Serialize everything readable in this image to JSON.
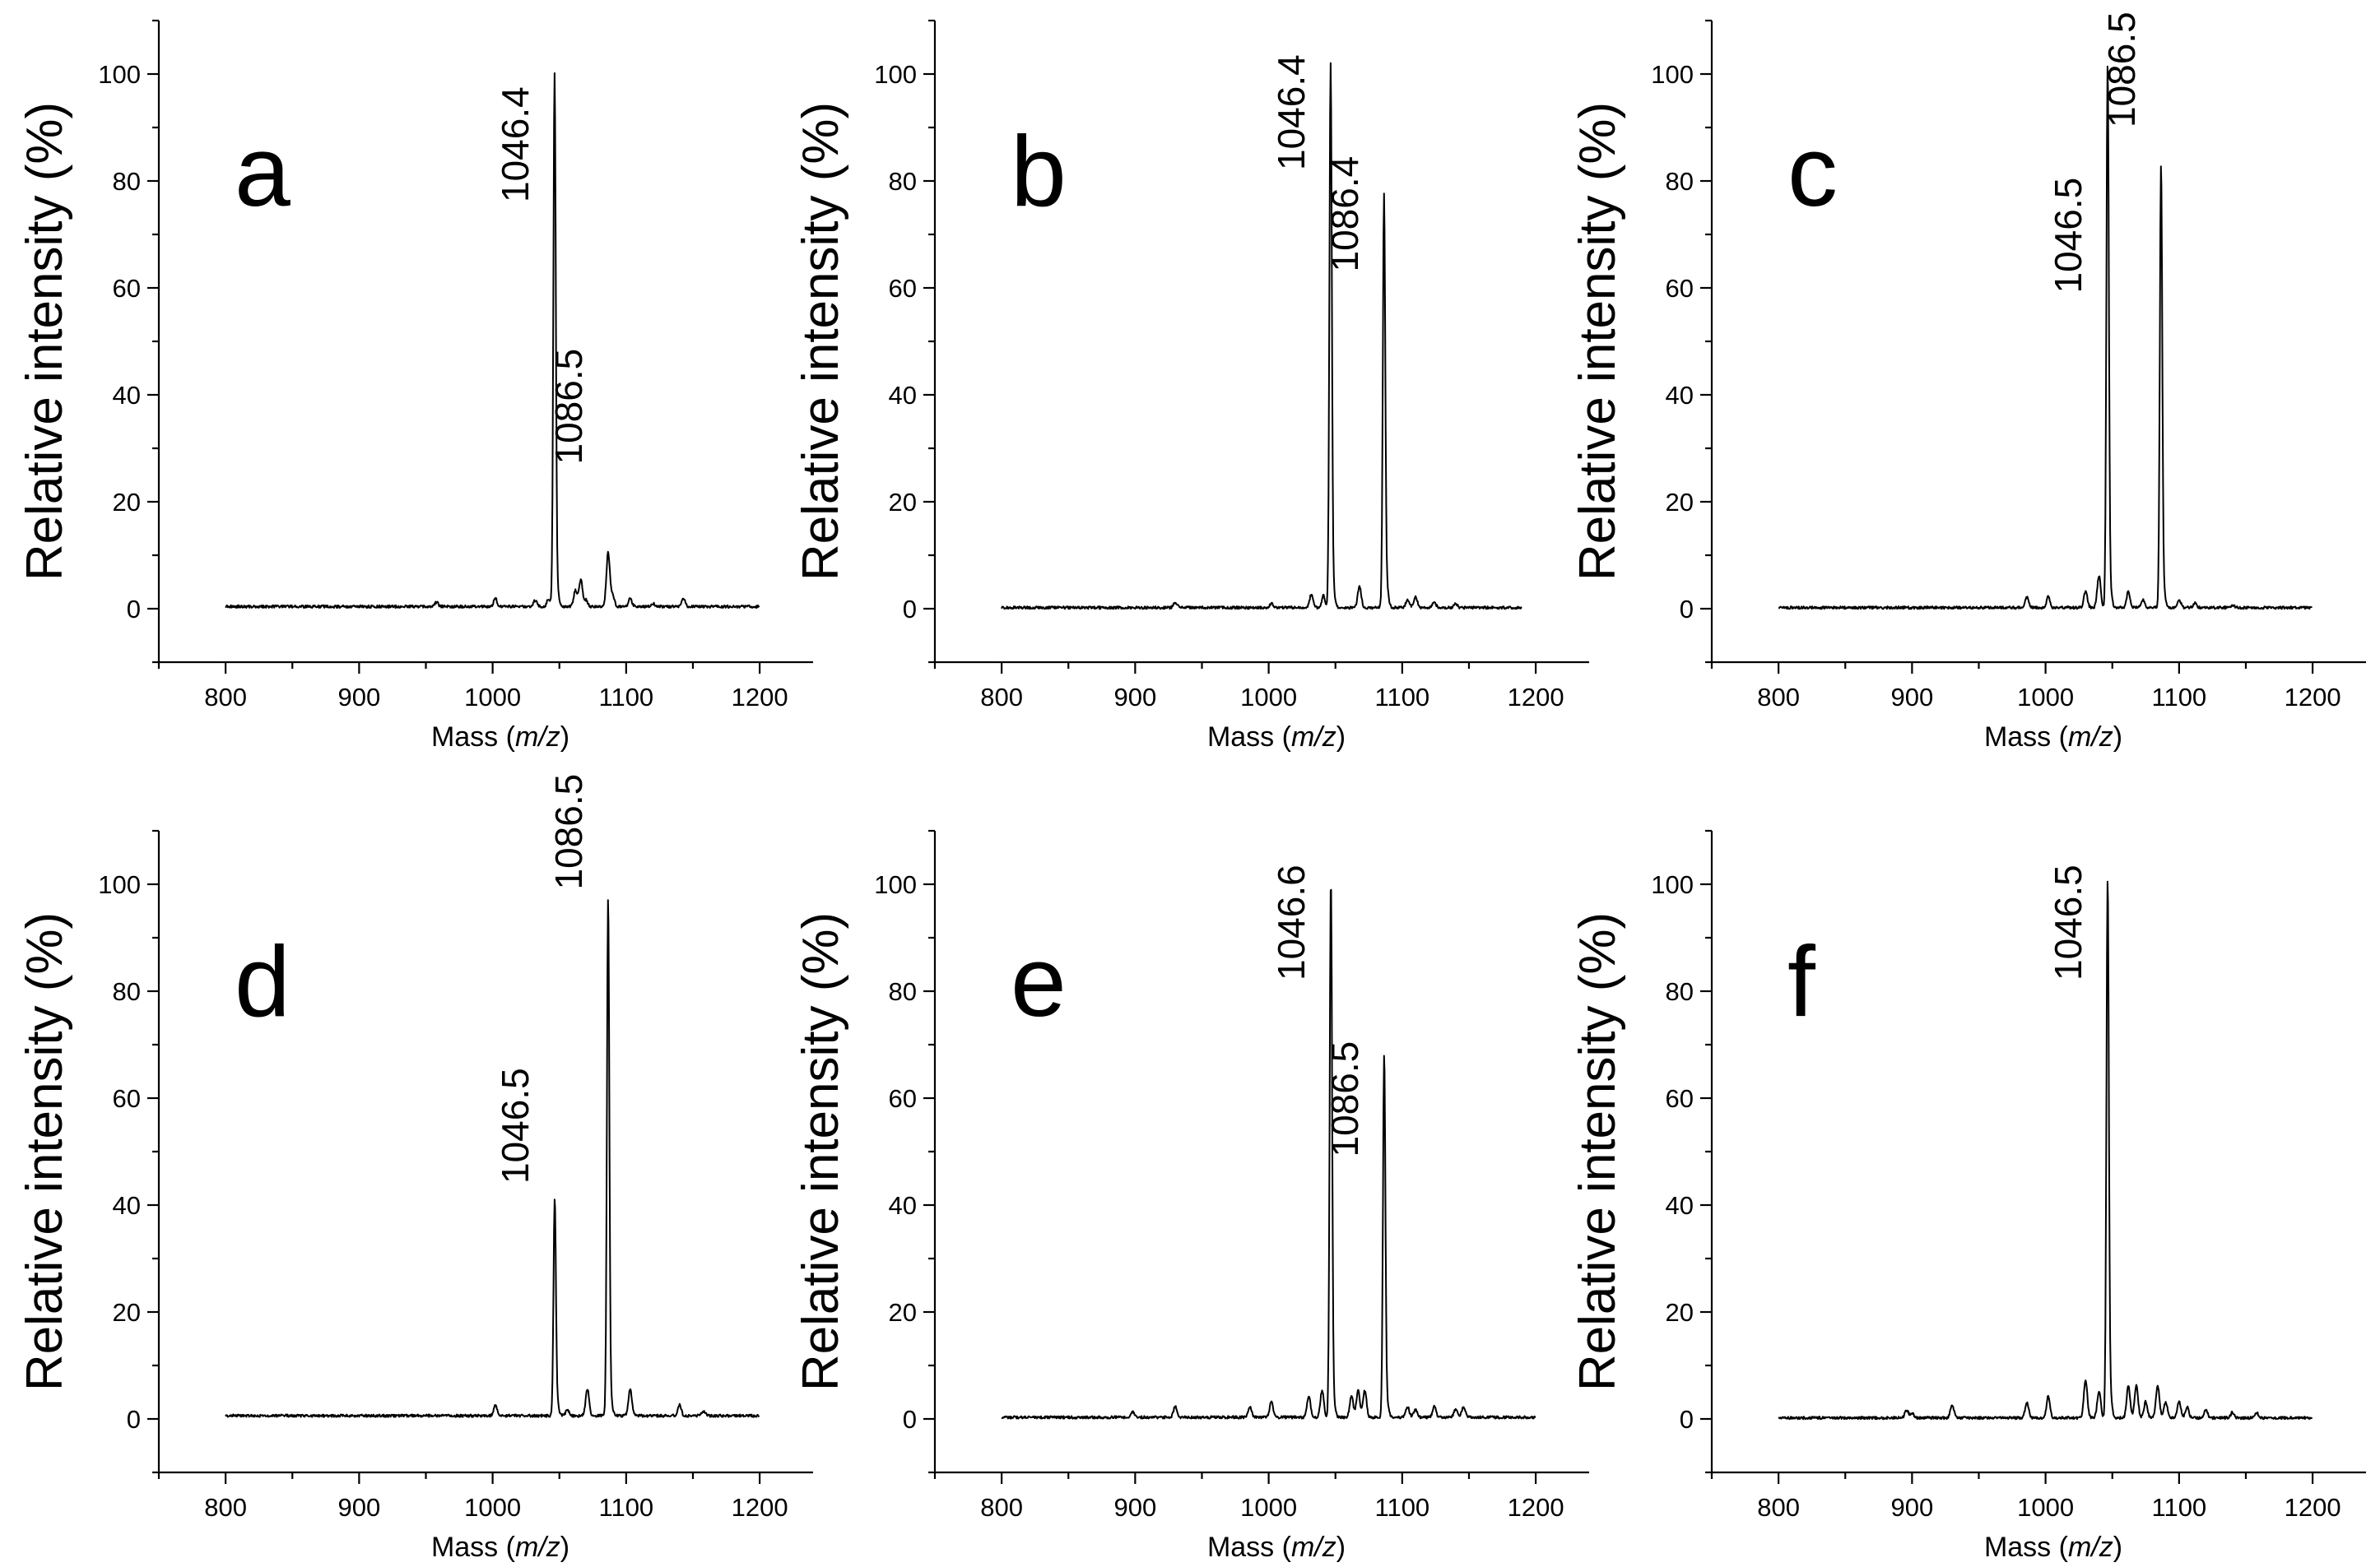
{
  "chart_data": [
    {
      "type": "line",
      "panel_label": "a",
      "xlabel_prefix": "Mass (",
      "xlabel_italic": "m/z",
      "xlabel_suffix": ")",
      "ylabel": "Relative intensity (%)",
      "xlim": [
        750,
        1240
      ],
      "ylim": [
        -10,
        110
      ],
      "xticks": [
        "800",
        "900",
        "1000",
        "1100",
        "1200"
      ],
      "yticks": [
        "0",
        "20",
        "40",
        "60",
        "80",
        "100"
      ],
      "x_range": [
        800,
        1200
      ],
      "baseline": 0.4,
      "peaks": [
        [
          958,
          0.8
        ],
        [
          1002,
          1.5
        ],
        [
          1032,
          1.2
        ],
        [
          1042,
          1.5
        ],
        [
          1046.4,
          99
        ],
        [
          1048.4,
          3
        ],
        [
          1062,
          3
        ],
        [
          1066,
          5
        ],
        [
          1070,
          1.2
        ],
        [
          1086.5,
          10
        ],
        [
          1090,
          2
        ],
        [
          1103,
          1.5
        ],
        [
          1120,
          0.6
        ],
        [
          1143,
          1.5
        ]
      ],
      "annotations": [
        {
          "text": "1046.4",
          "x": 1046.4,
          "y": 76
        },
        {
          "text": "1086.5",
          "x": 1086.5,
          "y": 27
        }
      ]
    },
    {
      "type": "line",
      "panel_label": "b",
      "xlabel_prefix": "Mass (",
      "xlabel_italic": "m/z",
      "xlabel_suffix": ")",
      "ylabel": "Relative intensity (%)",
      "xlim": [
        750,
        1240
      ],
      "ylim": [
        -10,
        110
      ],
      "xticks": [
        "800",
        "900",
        "1000",
        "1100",
        "1200"
      ],
      "yticks": [
        "0",
        "20",
        "40",
        "60",
        "80",
        "100"
      ],
      "x_range": [
        800,
        1190
      ],
      "baseline": 0.2,
      "peaks": [
        [
          930,
          1
        ],
        [
          1002,
          0.8
        ],
        [
          1032,
          2.5
        ],
        [
          1041,
          2.2
        ],
        [
          1046.4,
          101
        ],
        [
          1048.4,
          3
        ],
        [
          1068,
          4
        ],
        [
          1086.4,
          76
        ],
        [
          1088.4,
          4
        ],
        [
          1104,
          1.5
        ],
        [
          1110,
          2
        ],
        [
          1124,
          1
        ],
        [
          1140,
          0.8
        ]
      ],
      "annotations": [
        {
          "text": "1046.4",
          "x": 1046.4,
          "y": 82
        },
        {
          "text": "1086.4",
          "x": 1086.4,
          "y": 63
        }
      ]
    },
    {
      "type": "line",
      "panel_label": "c",
      "xlabel_prefix": "Mass (",
      "xlabel_italic": "m/z",
      "xlabel_suffix": ")",
      "ylabel": "Relative intensity (%)",
      "xlim": [
        750,
        1240
      ],
      "ylim": [
        -10,
        110
      ],
      "xticks": [
        "800",
        "900",
        "1000",
        "1100",
        "1200"
      ],
      "yticks": [
        "0",
        "20",
        "40",
        "60",
        "80",
        "100"
      ],
      "x_range": [
        800,
        1200
      ],
      "baseline": 0.2,
      "peaks": [
        [
          986,
          2
        ],
        [
          1002,
          2
        ],
        [
          1030,
          3
        ],
        [
          1040,
          6
        ],
        [
          1046.5,
          101
        ],
        [
          1048.5,
          3
        ],
        [
          1062,
          3
        ],
        [
          1073,
          1.5
        ],
        [
          1086.5,
          82
        ],
        [
          1088.5,
          3
        ],
        [
          1100,
          1.5
        ],
        [
          1112,
          0.8
        ],
        [
          1140,
          0.5
        ]
      ],
      "annotations": [
        {
          "text": "1046.5",
          "x": 1046.5,
          "y": 59
        },
        {
          "text": "1086.5",
          "x": 1086.5,
          "y": 90
        }
      ]
    },
    {
      "type": "line",
      "panel_label": "d",
      "xlabel_prefix": "Mass (",
      "xlabel_italic": "m/z",
      "xlabel_suffix": ")",
      "ylabel": "Relative intensity (%)",
      "xlim": [
        750,
        1240
      ],
      "ylim": [
        -10,
        110
      ],
      "xticks": [
        "800",
        "900",
        "1000",
        "1100",
        "1200"
      ],
      "yticks": [
        "0",
        "20",
        "40",
        "60",
        "80",
        "100"
      ],
      "x_range": [
        800,
        1200
      ],
      "baseline": 0.6,
      "peaks": [
        [
          1002,
          2
        ],
        [
          1046.5,
          40
        ],
        [
          1048.5,
          2
        ],
        [
          1056,
          1
        ],
        [
          1071,
          5
        ],
        [
          1086.5,
          96
        ],
        [
          1088.5,
          3
        ],
        [
          1103,
          5
        ],
        [
          1140,
          2
        ],
        [
          1158,
          0.8
        ]
      ],
      "annotations": [
        {
          "text": "1046.5",
          "x": 1046.5,
          "y": 44
        },
        {
          "text": "1086.5",
          "x": 1086.5,
          "y": 99
        }
      ]
    },
    {
      "type": "line",
      "panel_label": "e",
      "xlabel_prefix": "Mass (",
      "xlabel_italic": "m/z",
      "xlabel_suffix": ")",
      "ylabel": "Relative intensity (%)",
      "xlim": [
        750,
        1240
      ],
      "ylim": [
        -10,
        110
      ],
      "xticks": [
        "800",
        "900",
        "1000",
        "1100",
        "1200"
      ],
      "yticks": [
        "0",
        "20",
        "40",
        "60",
        "80",
        "100"
      ],
      "x_range": [
        800,
        1200
      ],
      "baseline": 0.3,
      "peaks": [
        [
          898,
          1
        ],
        [
          930,
          2
        ],
        [
          986,
          2
        ],
        [
          1002,
          3
        ],
        [
          1030,
          4
        ],
        [
          1040,
          5
        ],
        [
          1046.6,
          100
        ],
        [
          1048.6,
          3
        ],
        [
          1062,
          4
        ],
        [
          1067,
          5
        ],
        [
          1072,
          5
        ],
        [
          1086.5,
          67
        ],
        [
          1088.5,
          3
        ],
        [
          1104,
          2
        ],
        [
          1110,
          1.5
        ],
        [
          1124,
          2
        ],
        [
          1140,
          1.5
        ],
        [
          1146,
          2
        ]
      ],
      "annotations": [
        {
          "text": "1046.6",
          "x": 1046.6,
          "y": 82
        },
        {
          "text": "1086.5",
          "x": 1086.5,
          "y": 49
        }
      ]
    },
    {
      "type": "line",
      "panel_label": "f",
      "xlabel_prefix": "Mass (",
      "xlabel_italic": "m/z",
      "xlabel_suffix": ")",
      "ylabel": "Relative intensity (%)",
      "xlim": [
        750,
        1240
      ],
      "ylim": [
        -10,
        110
      ],
      "xticks": [
        "800",
        "900",
        "1000",
        "1100",
        "1200"
      ],
      "yticks": [
        "0",
        "20",
        "40",
        "60",
        "80",
        "100"
      ],
      "x_range": [
        800,
        1200
      ],
      "baseline": 0.2,
      "peaks": [
        [
          896,
          1.5
        ],
        [
          900,
          1
        ],
        [
          930,
          2.5
        ],
        [
          986,
          3
        ],
        [
          1002,
          4
        ],
        [
          1030,
          7
        ],
        [
          1040,
          5
        ],
        [
          1046.5,
          100
        ],
        [
          1048.5,
          4
        ],
        [
          1062,
          6
        ],
        [
          1068,
          6
        ],
        [
          1075,
          3
        ],
        [
          1084,
          6
        ],
        [
          1090,
          3
        ],
        [
          1100,
          3
        ],
        [
          1106,
          2
        ],
        [
          1120,
          1.5
        ],
        [
          1140,
          1
        ],
        [
          1158,
          1
        ]
      ],
      "annotations": [
        {
          "text": "1046.5",
          "x": 1046.5,
          "y": 82
        }
      ]
    }
  ]
}
